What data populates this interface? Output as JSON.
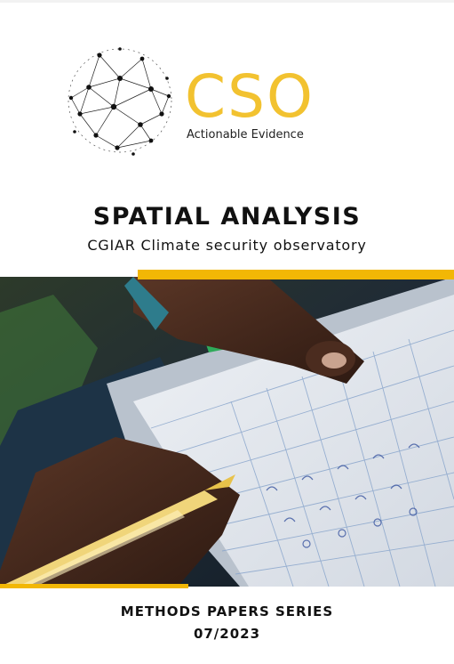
{
  "logo": {
    "mark": "CSO",
    "tagline": "Actionable Evidence",
    "mark_color": "#f2c230",
    "icon": "network-globe-icon"
  },
  "cover": {
    "title": "SPATIAL ANALYSIS",
    "subtitle": "CGIAR Climate security observatory"
  },
  "photo": {
    "description_icon": "hand-filling-datasheet-photo"
  },
  "footer": {
    "series": "METHODS PAPERS SERIES",
    "issue": "07/2023"
  },
  "colors": {
    "accent": "#f2b705",
    "text": "#111111",
    "background": "#ffffff"
  }
}
